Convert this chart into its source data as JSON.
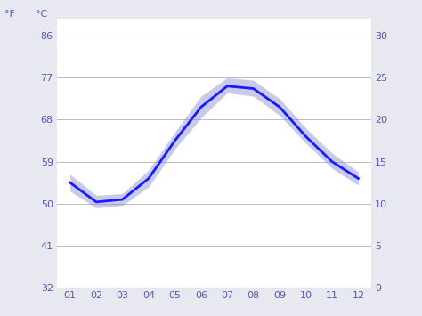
{
  "months": [
    1,
    2,
    3,
    4,
    5,
    6,
    7,
    8,
    9,
    10,
    11,
    12
  ],
  "month_labels": [
    "01",
    "02",
    "03",
    "04",
    "05",
    "06",
    "07",
    "08",
    "09",
    "10",
    "11",
    "12"
  ],
  "mean_temp_c": [
    12.5,
    10.2,
    10.5,
    13.0,
    17.5,
    21.5,
    24.0,
    23.7,
    21.5,
    18.0,
    15.0,
    13.0
  ],
  "min_temp_c": [
    11.5,
    9.5,
    9.8,
    12.0,
    16.5,
    20.2,
    23.2,
    22.8,
    20.5,
    17.2,
    14.2,
    12.2
  ],
  "max_temp_c": [
    13.5,
    11.0,
    11.2,
    14.0,
    18.5,
    22.8,
    25.0,
    24.7,
    22.5,
    19.0,
    16.0,
    13.8
  ],
  "line_color": "#1a1aff",
  "band_color": "#8888cc",
  "plot_bg_color": "#ffffff",
  "outer_bg_color": "#e8e8f0",
  "right_sidebar_color": "#d0cfc8",
  "grid_color": "#bbbbcc",
  "axis_label_color": "#5555bb",
  "tick_color": "#5555bb",
  "ylabel_left_f": "°F",
  "ylabel_right_c": "°C",
  "yticks_c": [
    0,
    5,
    10,
    15,
    20,
    25,
    30
  ],
  "yticks_f": [
    32,
    41,
    50,
    59,
    68,
    77,
    86
  ],
  "ylim_c": [
    0,
    32
  ],
  "xlim": [
    0.5,
    12.5
  ]
}
